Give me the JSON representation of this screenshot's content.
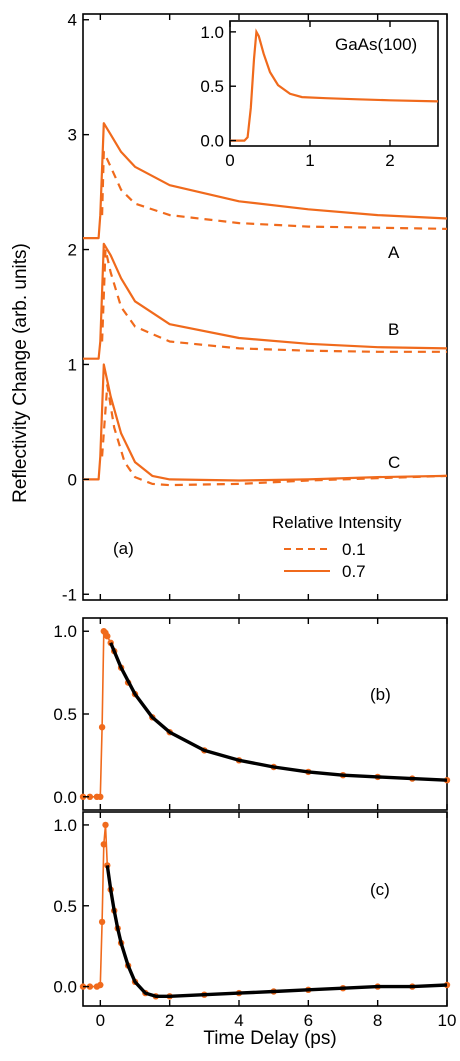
{
  "colors": {
    "series": "#f06a1c",
    "fit": "#000000",
    "axes": "#000000"
  },
  "labels": {
    "ylabel": "Reflectivity Change (arb. units)",
    "xlabel": "Time Delay (ps)",
    "panel_a": "(a)",
    "panel_b": "(b)",
    "panel_c": "(c)",
    "legend_title": "Relative Intensity",
    "legend_dashed": "0.1",
    "legend_solid": "0.7",
    "curve_A": "A",
    "curve_B": "B",
    "curve_C": "C",
    "inset_title": "GaAs(100)"
  },
  "chart_data": [
    {
      "type": "line",
      "panel": "(a)",
      "xlim": [
        -0.5,
        10
      ],
      "ylim": [
        -1.05,
        4.05
      ],
      "xticks": [
        "0",
        "2",
        "4",
        "6",
        "8",
        "10"
      ],
      "yticks": [
        "-1",
        "0",
        "1",
        "2",
        "3",
        "4"
      ],
      "legend": {
        "title": "Relative Intensity",
        "entries": [
          "0.1",
          "0.7"
        ],
        "placement": "lower-right"
      },
      "series": [
        {
          "name": "A",
          "intensity": "0.7",
          "style": "solid",
          "x": [
            -0.5,
            -0.05,
            0,
            0.1,
            0.3,
            0.6,
            1,
            2,
            4,
            6,
            8,
            10
          ],
          "y": [
            2.1,
            2.1,
            2.3,
            3.1,
            3.0,
            2.85,
            2.72,
            2.56,
            2.42,
            2.35,
            2.3,
            2.27
          ]
        },
        {
          "name": "A",
          "intensity": "0.1",
          "style": "dashed",
          "x": [
            0.05,
            0.1,
            0.3,
            0.6,
            1,
            2,
            4,
            6,
            8,
            10
          ],
          "y": [
            2.3,
            2.85,
            2.72,
            2.52,
            2.4,
            2.3,
            2.23,
            2.2,
            2.19,
            2.18
          ]
        },
        {
          "name": "B",
          "intensity": "0.7",
          "style": "solid",
          "x": [
            -0.5,
            -0.05,
            0,
            0.1,
            0.3,
            0.6,
            1,
            2,
            4,
            6,
            8,
            10
          ],
          "y": [
            1.05,
            1.05,
            1.2,
            2.05,
            1.95,
            1.75,
            1.55,
            1.35,
            1.23,
            1.18,
            1.15,
            1.14
          ]
        },
        {
          "name": "B",
          "intensity": "0.1",
          "style": "dashed",
          "x": [
            0.05,
            0.15,
            0.3,
            0.6,
            1,
            2,
            4,
            6,
            8,
            10
          ],
          "y": [
            1.2,
            2.0,
            1.8,
            1.5,
            1.33,
            1.2,
            1.14,
            1.12,
            1.11,
            1.11
          ]
        },
        {
          "name": "C",
          "intensity": "0.7",
          "style": "solid",
          "x": [
            -0.5,
            -0.05,
            0,
            0.1,
            0.3,
            0.6,
            1,
            1.5,
            2,
            4,
            6,
            8,
            10
          ],
          "y": [
            0,
            0,
            0.2,
            1.0,
            0.72,
            0.4,
            0.15,
            0.03,
            0.0,
            -0.01,
            0.0,
            0.02,
            0.03
          ]
        },
        {
          "name": "C",
          "intensity": "0.1",
          "style": "dashed",
          "x": [
            0.05,
            0.2,
            0.4,
            0.7,
            1,
            1.5,
            2,
            4,
            6,
            8,
            10
          ],
          "y": [
            0.2,
            0.82,
            0.45,
            0.15,
            0.02,
            -0.04,
            -0.05,
            -0.04,
            -0.01,
            0.01,
            0.03
          ]
        }
      ]
    },
    {
      "type": "line",
      "panel": "inset",
      "title": "GaAs(100)",
      "xlim": [
        0,
        2.6
      ],
      "ylim": [
        -0.05,
        1.1
      ],
      "xticks": [
        "0",
        "1",
        "2"
      ],
      "yticks": [
        "0.0",
        "0.5",
        "1.0"
      ],
      "series": [
        {
          "x": [
            0,
            0.18,
            0.22,
            0.26,
            0.3,
            0.33,
            0.36,
            0.42,
            0.5,
            0.6,
            0.75,
            0.9,
            1.2,
            1.6,
            2.0,
            2.6
          ],
          "y": [
            0.0,
            0.0,
            0.03,
            0.3,
            0.75,
            1.0,
            0.96,
            0.8,
            0.63,
            0.51,
            0.43,
            0.4,
            0.39,
            0.38,
            0.37,
            0.36
          ]
        }
      ]
    },
    {
      "type": "scatter",
      "panel": "(b)",
      "xlim": [
        -0.5,
        10
      ],
      "ylim": [
        -0.08,
        1.08
      ],
      "xticks": [
        "0",
        "2",
        "4",
        "6",
        "8",
        "10"
      ],
      "yticks": [
        "0.0",
        "0.5",
        "1.0"
      ],
      "series": [
        {
          "style": "data",
          "x": [
            -0.5,
            -0.3,
            -0.1,
            0.0,
            0.05,
            0.1,
            0.15,
            0.2,
            0.3,
            0.4,
            0.6,
            0.8,
            1,
            1.5,
            2,
            3,
            4,
            5,
            6,
            7,
            8,
            9,
            10
          ],
          "y": [
            0.0,
            0.0,
            0.0,
            0.0,
            0.42,
            1.0,
            0.99,
            0.97,
            0.93,
            0.88,
            0.78,
            0.69,
            0.62,
            0.48,
            0.39,
            0.28,
            0.22,
            0.18,
            0.15,
            0.13,
            0.12,
            0.11,
            0.1
          ]
        },
        {
          "style": "fit",
          "x": [
            0.3,
            0.6,
            1,
            1.5,
            2,
            3,
            4,
            5,
            6,
            7,
            8,
            9,
            10
          ],
          "y": [
            0.93,
            0.78,
            0.62,
            0.48,
            0.39,
            0.28,
            0.22,
            0.18,
            0.15,
            0.13,
            0.12,
            0.11,
            0.1
          ]
        }
      ]
    },
    {
      "type": "scatter",
      "panel": "(c)",
      "xlim": [
        -0.5,
        10
      ],
      "ylim": [
        -0.12,
        1.08
      ],
      "xticks": [
        "0",
        "2",
        "4",
        "6",
        "8",
        "10"
      ],
      "yticks": [
        "0.0",
        "0.5",
        "1.0"
      ],
      "series": [
        {
          "style": "data",
          "x": [
            -0.5,
            -0.3,
            -0.1,
            0.0,
            0.05,
            0.1,
            0.15,
            0.2,
            0.3,
            0.4,
            0.5,
            0.6,
            0.8,
            1,
            1.3,
            1.6,
            2,
            3,
            4,
            5,
            6,
            7,
            8,
            9,
            10
          ],
          "y": [
            0.0,
            0.0,
            0.0,
            0.01,
            0.4,
            0.88,
            1.0,
            0.75,
            0.6,
            0.47,
            0.36,
            0.27,
            0.13,
            0.03,
            -0.04,
            -0.06,
            -0.06,
            -0.05,
            -0.04,
            -0.03,
            -0.02,
            -0.01,
            0.0,
            0.0,
            0.01
          ]
        },
        {
          "style": "fit",
          "x": [
            0.2,
            0.3,
            0.4,
            0.5,
            0.6,
            0.8,
            1,
            1.3,
            1.6,
            2,
            3,
            4,
            5,
            6,
            7,
            8,
            9,
            10
          ],
          "y": [
            0.75,
            0.6,
            0.47,
            0.36,
            0.27,
            0.13,
            0.03,
            -0.04,
            -0.06,
            -0.06,
            -0.05,
            -0.04,
            -0.03,
            -0.02,
            -0.01,
            0.0,
            0.0,
            0.01
          ]
        }
      ]
    }
  ]
}
